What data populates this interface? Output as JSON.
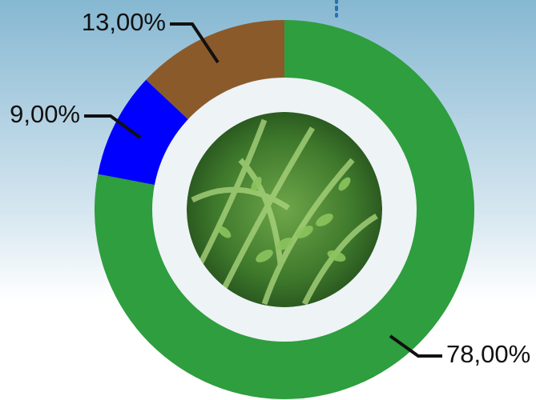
{
  "chart_data": {
    "type": "donut",
    "categories": [
      null,
      null,
      null
    ],
    "values": [
      78,
      9,
      13
    ],
    "value_labels": [
      "78,00%",
      "9,00%",
      "13,00%"
    ],
    "colors": [
      "#2e9e3e",
      "#0000ff",
      "#8b5a2b"
    ]
  }
}
